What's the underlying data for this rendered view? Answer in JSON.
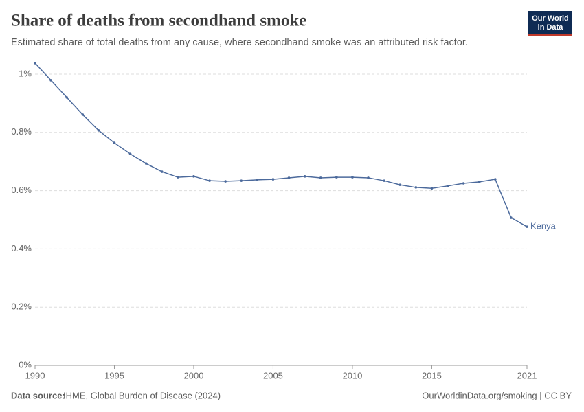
{
  "chart_data": {
    "type": "line",
    "title": "Share of deaths from secondhand smoke",
    "subtitle": "Estimated share of total deaths from any cause, where secondhand smoke was an attributed risk factor.",
    "source_label": "Data source:",
    "source": "IHME, Global Burden of Disease (2024)",
    "url": "OurWorldinData.org/smoking | CC BY",
    "logo": [
      "Our World",
      "in Data"
    ],
    "x": [
      1990,
      1991,
      1992,
      1993,
      1994,
      1995,
      1996,
      1997,
      1998,
      1999,
      2000,
      2001,
      2002,
      2003,
      2004,
      2005,
      2006,
      2007,
      2008,
      2009,
      2010,
      2011,
      2012,
      2013,
      2014,
      2015,
      2016,
      2017,
      2018,
      2019,
      2020,
      2021
    ],
    "series": [
      {
        "name": "Kenya",
        "color": "#4c6a9c",
        "values": [
          1.038,
          0.979,
          0.92,
          0.861,
          0.807,
          0.764,
          0.726,
          0.693,
          0.665,
          0.646,
          0.649,
          0.634,
          0.632,
          0.634,
          0.637,
          0.639,
          0.644,
          0.649,
          0.644,
          0.646,
          0.646,
          0.644,
          0.634,
          0.62,
          0.611,
          0.608,
          0.616,
          0.625,
          0.63,
          0.639,
          0.507,
          0.476
        ]
      }
    ],
    "xlim": [
      1990,
      2021
    ],
    "xticks": [
      1990,
      1995,
      2000,
      2005,
      2010,
      2015,
      2021
    ],
    "ylim": [
      0,
      1.05
    ],
    "yticks": [
      {
        "value": 0,
        "label": "0%"
      },
      {
        "value": 0.2,
        "label": "0.2%"
      },
      {
        "value": 0.4,
        "label": "0.4%"
      },
      {
        "value": 0.6,
        "label": "0.6%"
      },
      {
        "value": 0.8,
        "label": "0.8%"
      },
      {
        "value": 1,
        "label": "1%"
      }
    ],
    "grid": true
  }
}
